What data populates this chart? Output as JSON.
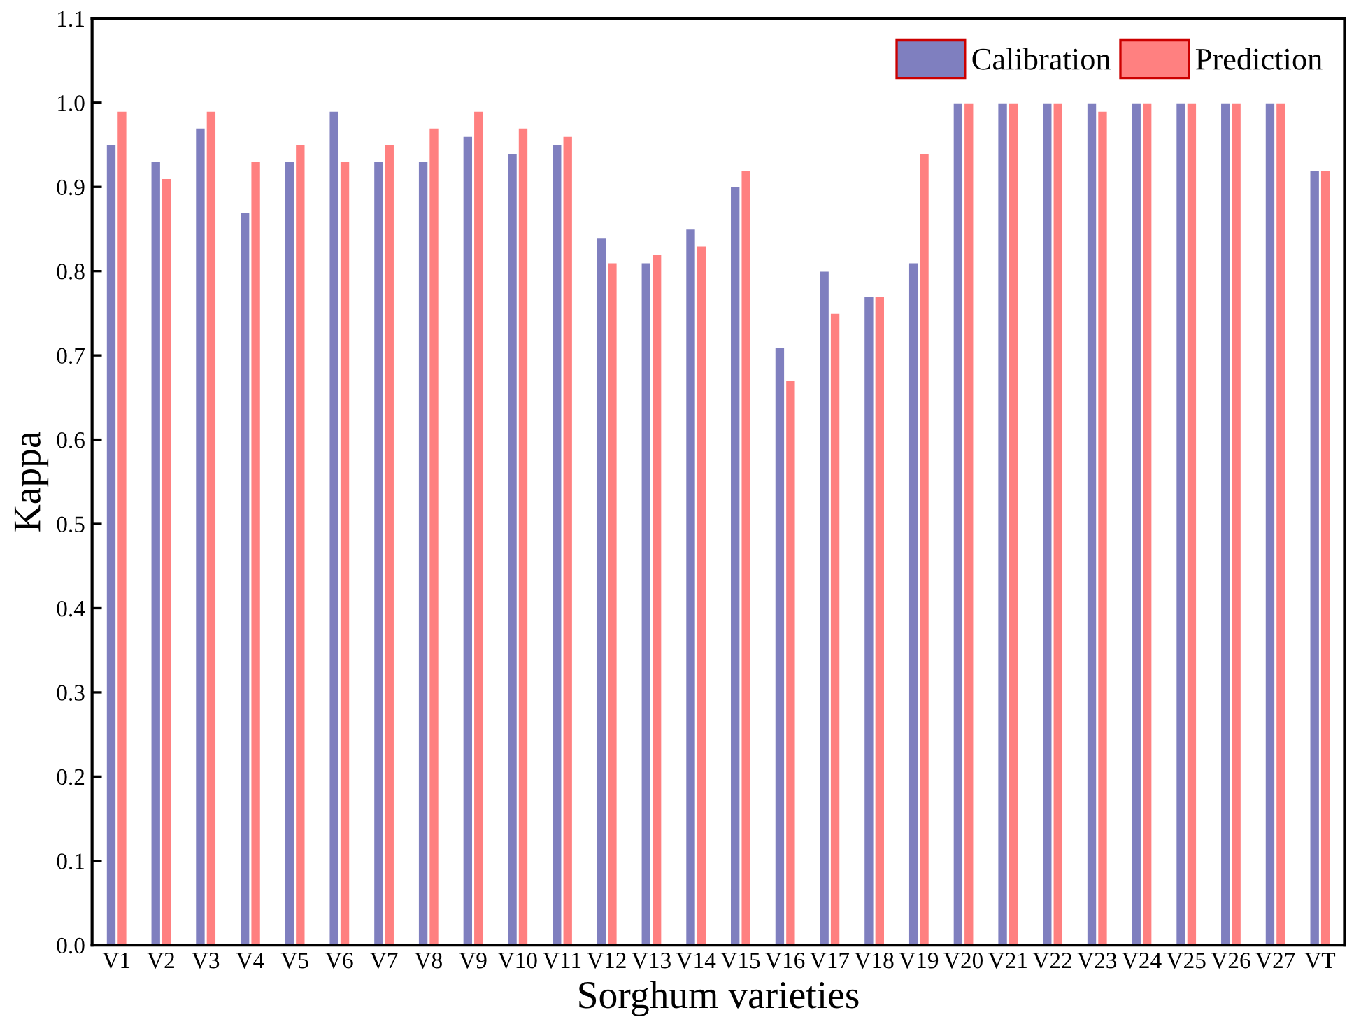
{
  "chart_data": {
    "type": "bar",
    "xlabel": "Sorghum varieties",
    "ylabel": "Kappa",
    "categories": [
      "V1",
      "V2",
      "V3",
      "V4",
      "V5",
      "V6",
      "V7",
      "V8",
      "V9",
      "V10",
      "V11",
      "V12",
      "V13",
      "V14",
      "V15",
      "V16",
      "V17",
      "V18",
      "V19",
      "V20",
      "V21",
      "V22",
      "V23",
      "V24",
      "V25",
      "V26",
      "V27",
      "VT"
    ],
    "series": [
      {
        "name": "Calibration",
        "color": "#7f7fbf",
        "values": [
          0.95,
          0.93,
          0.97,
          0.87,
          0.93,
          0.99,
          0.93,
          0.93,
          0.96,
          0.94,
          0.95,
          0.84,
          0.81,
          0.85,
          0.9,
          0.71,
          0.8,
          0.77,
          0.81,
          1.0,
          1.0,
          1.0,
          1.0,
          1.0,
          1.0,
          1.0,
          1.0,
          0.92
        ]
      },
      {
        "name": "Prediction",
        "color": "#ff8080",
        "values": [
          0.99,
          0.91,
          0.99,
          0.93,
          0.95,
          0.93,
          0.95,
          0.97,
          0.99,
          0.97,
          0.96,
          0.81,
          0.82,
          0.83,
          0.92,
          0.67,
          0.75,
          0.77,
          0.94,
          1.0,
          1.0,
          1.0,
          0.99,
          1.0,
          1.0,
          1.0,
          1.0,
          0.92
        ]
      }
    ],
    "ylim": [
      0,
      1.1
    ],
    "yticks": [
      {
        "value": 0,
        "label": "0.0"
      },
      0.1,
      0.2,
      0.3,
      0.4,
      0.5,
      0.6,
      0.7,
      0.8,
      0.9,
      {
        "value": 1,
        "label": "1.0"
      },
      1.1
    ],
    "legend": "top right",
    "grid": false
  }
}
